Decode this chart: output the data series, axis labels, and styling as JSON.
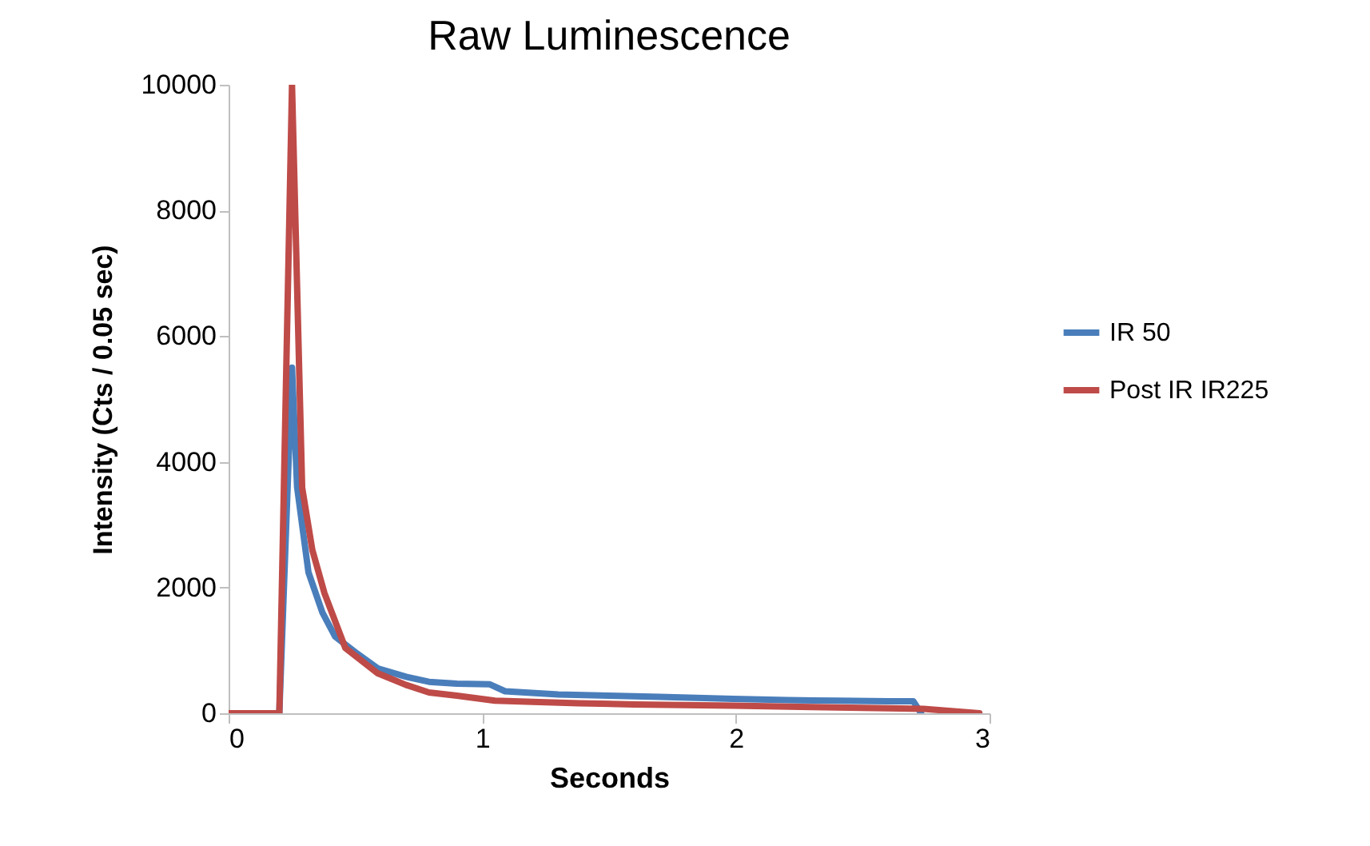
{
  "chart_data": {
    "type": "line",
    "title": "Raw Luminescence",
    "xlabel": "Seconds",
    "ylabel": "Intensity (Cts / 0.05 sec)",
    "xlim": [
      0,
      3
    ],
    "xticks": [
      0,
      1,
      2,
      3
    ],
    "ylim": [
      0,
      10000
    ],
    "yticks": [
      0,
      2000,
      4000,
      6000,
      8000,
      10000
    ],
    "grid": false,
    "legend": "right",
    "series": [
      {
        "name": "IR 50",
        "color": "#4a7ebb",
        "x": [
          0.2,
          0.25,
          0.27,
          0.315,
          0.37,
          0.42,
          0.5,
          0.59,
          0.7,
          0.79,
          0.9,
          1.03,
          1.09,
          1.3,
          1.5,
          1.7,
          1.99,
          2.2,
          2.4,
          2.6,
          2.7,
          2.73
        ],
        "values": [
          0,
          5500,
          3600,
          2240,
          1600,
          1220,
          970,
          710,
          580,
          500,
          470,
          460,
          350,
          300,
          280,
          260,
          230,
          210,
          200,
          190,
          190,
          0
        ]
      },
      {
        "name": "Post IR IR225",
        "color": "#be4b48",
        "x": [
          0,
          0.2,
          0.25,
          0.29,
          0.33,
          0.378,
          0.46,
          0.586,
          0.7,
          0.79,
          0.9,
          1.05,
          1.2,
          1.38,
          1.6,
          1.99,
          2.3,
          2.6,
          2.74,
          2.96
        ],
        "values": [
          0,
          0,
          10000,
          3590,
          2600,
          1910,
          1040,
          640,
          450,
          330,
          280,
          200,
          180,
          160,
          140,
          120,
          100,
          80,
          70,
          0
        ]
      }
    ]
  }
}
